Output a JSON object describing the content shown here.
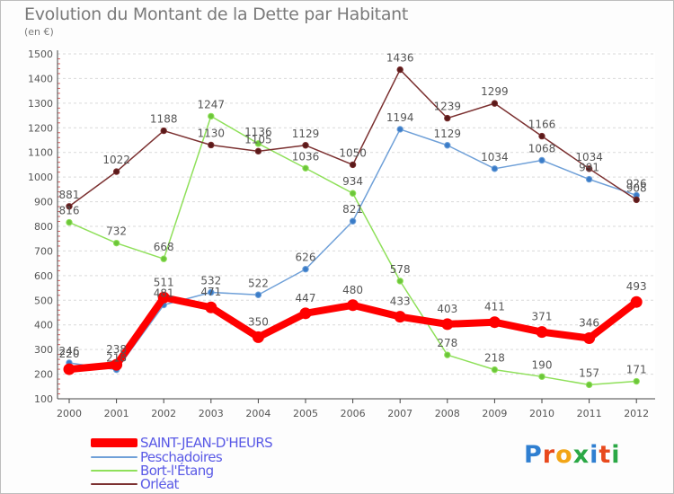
{
  "title": "Evolution du Montant de la Dette par Habitant",
  "subtitle": "(en €)",
  "logo": {
    "text": "Proxiti",
    "letter_colors": [
      "#2f7fd1",
      "#e8491d",
      "#f2a516",
      "#2aa845",
      "#2f7fd1",
      "#e8491d",
      "#2aa845"
    ]
  },
  "chart_data": {
    "type": "line",
    "title": "Evolution du Montant de la Dette par Habitant",
    "subtitle": "(en €)",
    "xlabel": "",
    "ylabel": "",
    "x": [
      "2000",
      "2001",
      "2002",
      "2003",
      "2004",
      "2005",
      "2006",
      "2007",
      "2008",
      "2009",
      "2010",
      "2011",
      "2012"
    ],
    "ylim": [
      100,
      1500
    ],
    "yticks": [
      "100",
      "200",
      "300",
      "400",
      "500",
      "600",
      "700",
      "800",
      "900",
      "1000",
      "1100",
      "1200",
      "1300",
      "1400",
      "1500"
    ],
    "grid": "horizontal dashed",
    "legend_position": "bottom-left",
    "series": [
      {
        "name": "SAINT-JEAN-D'HEURS",
        "color": "#ff0000",
        "emphasis": true,
        "values": [
          220,
          238,
          511,
          471,
          350,
          447,
          480,
          433,
          403,
          411,
          371,
          346,
          493
        ]
      },
      {
        "name": "Peschadoires",
        "color": "#6fa0d8",
        "marker": "#3a7cc8",
        "values": [
          246,
          218,
          481,
          532,
          522,
          626,
          821,
          1194,
          1129,
          1034,
          1068,
          991,
          926
        ]
      },
      {
        "name": "Bort-l'Étang",
        "color": "#8fe05a",
        "marker": "#6cc63a",
        "values": [
          816,
          732,
          668,
          1247,
          1136,
          1036,
          934,
          578,
          278,
          218,
          190,
          157,
          171
        ]
      },
      {
        "name": "Orléat",
        "color": "#7b3030",
        "marker": "#5a1a1a",
        "values": [
          881,
          1022,
          1188,
          1130,
          1105,
          1129,
          1050,
          1436,
          1239,
          1299,
          1166,
          1034,
          908
        ]
      }
    ]
  }
}
